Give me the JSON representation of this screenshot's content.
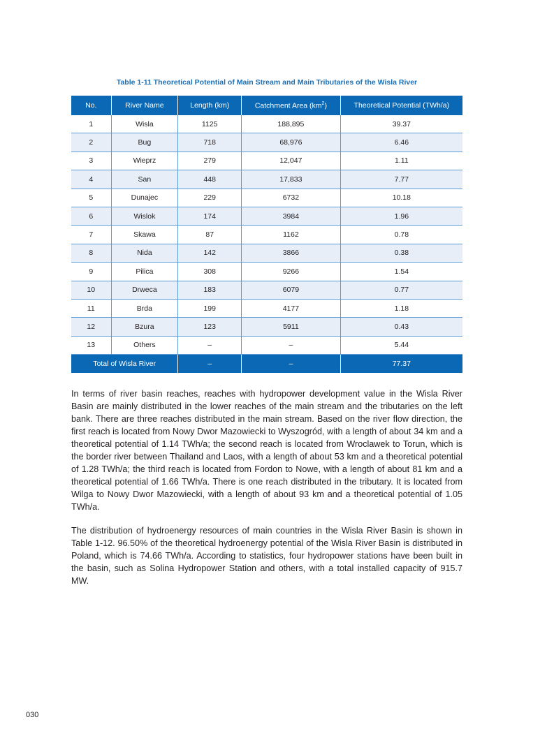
{
  "table": {
    "caption": "Table 1-11    Theoretical Potential of Main Stream and Main Tributaries of the Wisla River",
    "headers": [
      "No.",
      "River Name",
      "Length (km)",
      "Catchment Area (km",
      "2",
      ")",
      "Theoretical Potential (TWh/a)"
    ],
    "rows": [
      [
        "1",
        "Wisla",
        "1125",
        "188,895",
        "39.37"
      ],
      [
        "2",
        "Bug",
        "718",
        "68,976",
        "6.46"
      ],
      [
        "3",
        "Wieprz",
        "279",
        "12,047",
        "1.11"
      ],
      [
        "4",
        "San",
        "448",
        "17,833",
        "7.77"
      ],
      [
        "5",
        "Dunajec",
        "229",
        "6732",
        "10.18"
      ],
      [
        "6",
        "Wislok",
        "174",
        "3984",
        "1.96"
      ],
      [
        "7",
        "Skawa",
        "87",
        "1162",
        "0.78"
      ],
      [
        "8",
        "Nida",
        "142",
        "3866",
        "0.38"
      ],
      [
        "9",
        "Pilica",
        "308",
        "9266",
        "1.54"
      ],
      [
        "10",
        "Drweca",
        "183",
        "6079",
        "0.77"
      ],
      [
        "11",
        "Brda",
        "199",
        "4177",
        "1.18"
      ],
      [
        "12",
        "Bzura",
        "123",
        "5911",
        "0.43"
      ],
      [
        "13",
        "Others",
        "–",
        "–",
        "5.44"
      ]
    ],
    "total": [
      "Total of Wisla River",
      "–",
      "–",
      "77.37"
    ]
  },
  "paragraphs": [
    "In terms of river basin reaches, reaches with hydropower development value in the Wisla River Basin are mainly distributed in the lower reaches of the main stream and the tributaries on the left bank. There are three reaches distributed in the main stream. Based on the river flow direction, the first reach is located from Nowy Dwor Mazowiecki to Wyszogród, with a length of about 34 km and a theoretical potential of 1.14 TWh/a; the second reach is located from Wroclawek to Torun, which is the border river between Thailand and Laos, with a length of about 53 km and a theoretical potential of 1.28 TWh/a; the third reach is located from Fordon to Nowe, with a length of about 81 km and a theoretical potential of 1.66 TWh/a. There is one reach distributed in the tributary. It is located from Wilga to Nowy Dwor Mazowiecki, with a length of about 93 km and a theoretical potential of 1.05 TWh/a.",
    "The distribution of hydroenergy resources of main countries in the Wisla River Basin is shown in Table 1-12. 96.50% of the theoretical hydroenergy potential of the Wisla River Basin is distributed in Poland, which is 74.66 TWh/a. According to statistics, four hydropower stations have been built in the basin, such as Solina Hydropower Station and others, with a total installed capacity of 915.7 MW."
  ],
  "page_number": "030",
  "colors": {
    "header": "#0a68b4",
    "caption": "#1a6fb5",
    "row_alt": "#e8eef8"
  }
}
